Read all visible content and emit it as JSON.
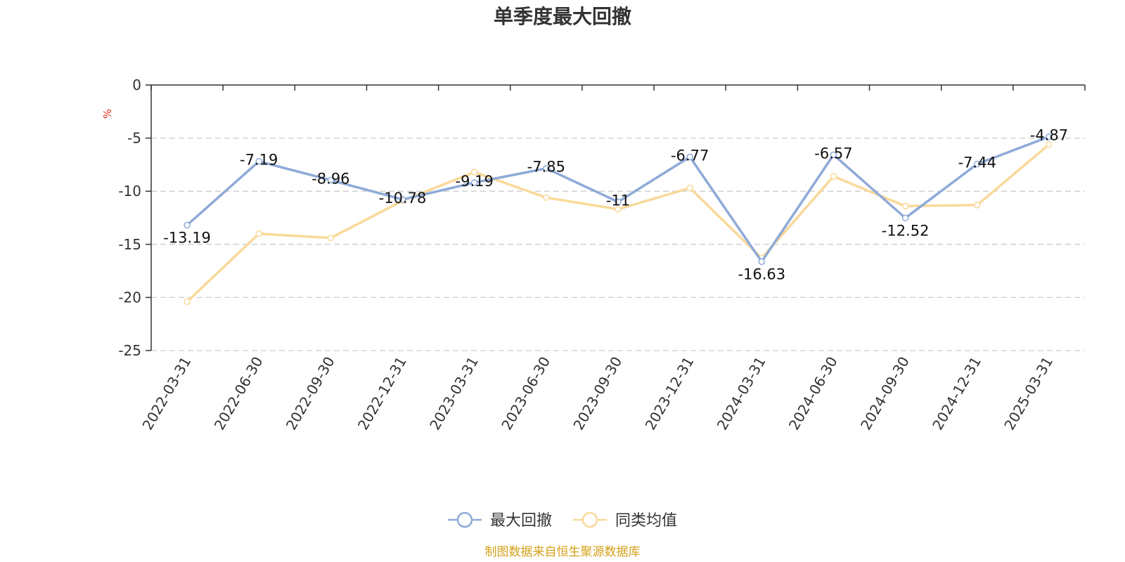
{
  "colors": {
    "series_drawdown": "#8eaad8",
    "series_peer": "#f9d99a",
    "grid": "#cccccc",
    "axis": "#333333",
    "unit": "#e6281e",
    "source": "#d4a017"
  },
  "chart_data": {
    "type": "line",
    "title": "单季度最大回撤",
    "ylabel": "%",
    "ylim": [
      -25,
      0
    ],
    "yticks": [
      0,
      -5,
      -10,
      -15,
      -20,
      -25
    ],
    "ytick_labels": [
      "0",
      "-5",
      "-10",
      "-15",
      "-20",
      "-25"
    ],
    "grid": true,
    "legend_position": "bottom-center",
    "categories": [
      "2022-03-31",
      "2022-06-30",
      "2022-09-30",
      "2022-12-31",
      "2023-03-31",
      "2023-06-30",
      "2023-09-30",
      "2023-12-31",
      "2024-03-31",
      "2024-06-30",
      "2024-09-30",
      "2024-12-31",
      "2025-03-31"
    ],
    "series": [
      {
        "name": "最大回撤",
        "values": [
          -13.19,
          -7.19,
          -8.96,
          -10.78,
          -9.19,
          -7.85,
          -11,
          -6.77,
          -16.63,
          -6.57,
          -12.52,
          -7.44,
          -4.87
        ],
        "labels": [
          "-13.19",
          "-7.19",
          "-8.96",
          "-10.78",
          "-9.19",
          "-7.85",
          "-11",
          "-6.77",
          "-16.63",
          "-6.57",
          "-12.52",
          "-7.44",
          "-4.87"
        ]
      },
      {
        "name": "同类均值",
        "values": [
          -20.4,
          -14.0,
          -14.4,
          -10.9,
          -8.2,
          -10.6,
          -11.7,
          -9.7,
          -16.3,
          -8.6,
          -11.4,
          -11.3,
          -5.6
        ]
      }
    ]
  },
  "source_text": "制图数据来自恒生聚源数据库"
}
